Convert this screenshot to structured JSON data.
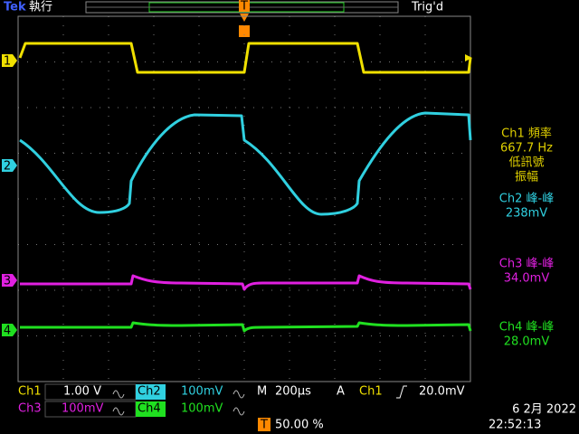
{
  "header": {
    "brand": "Tek",
    "status": "執行",
    "trigger_state": "Trig'd",
    "trigger_marker": "T"
  },
  "channel_markers": [
    "1",
    "2",
    "3",
    "4"
  ],
  "measurements": [
    {
      "label": "Ch1 頻率",
      "value": "667.7 Hz",
      "notes": [
        "低訊號",
        "振幅"
      ]
    },
    {
      "label": "Ch2 峰-峰",
      "value": "238mV"
    },
    {
      "label": "Ch3 峰-峰",
      "value": "34.0mV"
    },
    {
      "label": "Ch4 峰-峰",
      "value": "28.0mV"
    }
  ],
  "settings": {
    "channels": [
      {
        "name": "Ch1",
        "scale": "1.00 V"
      },
      {
        "name": "Ch2",
        "scale": "100mV"
      },
      {
        "name": "Ch3",
        "scale": "100mV"
      },
      {
        "name": "Ch4",
        "scale": "100mV"
      }
    ],
    "timebase_label": "M",
    "timebase": "200µs",
    "trigger_mode": "A",
    "trigger_source": "Ch1",
    "trigger_level": "20.0mV",
    "trigger_position_marker": "T",
    "trigger_position": "50.00 %"
  },
  "date": "6 2月 2022",
  "time": "22:52:13"
}
